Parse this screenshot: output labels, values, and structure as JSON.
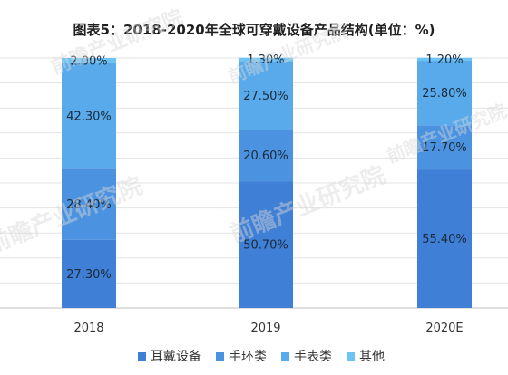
{
  "chart_data": {
    "type": "bar",
    "stacked": true,
    "title": "图表5：2018-2020年全球可穿戴设备产品结构(单位：%)",
    "categories": [
      "2018",
      "2019",
      "2020E"
    ],
    "series": [
      {
        "name": "耳戴设备",
        "values": [
          27.3,
          50.7,
          55.4
        ],
        "labels": [
          "27.30%",
          "50.70%",
          "55.40%"
        ],
        "color": "#3f7fd5"
      },
      {
        "name": "手环类",
        "values": [
          28.4,
          20.6,
          17.7
        ],
        "labels": [
          "28.40%",
          "20.60%",
          "17.70%"
        ],
        "color": "#4b93e0"
      },
      {
        "name": "手表类",
        "values": [
          42.3,
          27.5,
          25.8
        ],
        "labels": [
          "42.30%",
          "27.50%",
          "25.80%"
        ],
        "color": "#58aaeb"
      },
      {
        "name": "其他",
        "values": [
          2.0,
          1.3,
          1.2
        ],
        "labels": [
          "2.00%",
          "1.30%",
          "1.20%"
        ],
        "color": "#6cc3f4"
      }
    ],
    "ylim": [
      0,
      100
    ],
    "grid": true,
    "legend_position": "bottom"
  },
  "watermark": {
    "text": "前瞻产业研究院"
  }
}
